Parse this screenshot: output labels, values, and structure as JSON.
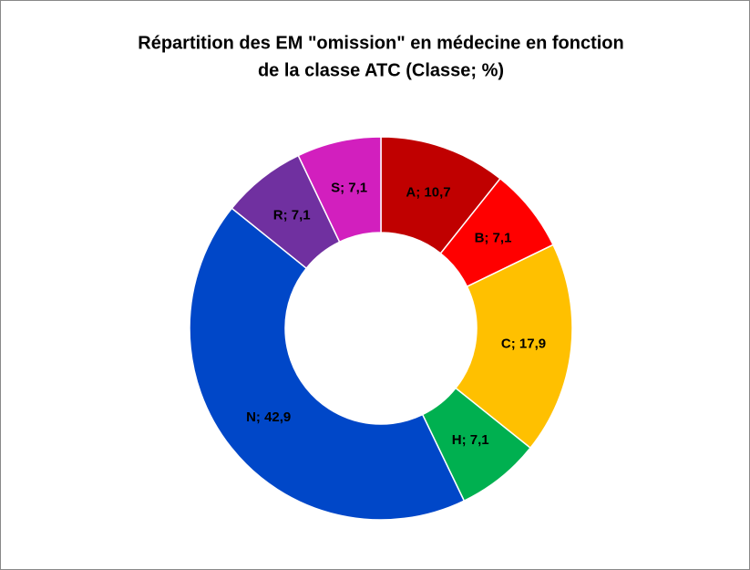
{
  "chart_data": {
    "type": "donut",
    "title": "Répartition des EM \"omission\" en médecine en fonction",
    "subtitle": "de la classe ATC (Classe; %)",
    "values": [
      10.7,
      7.1,
      17.9,
      7.1,
      42.9,
      7.1,
      7.1
    ],
    "value_labels": [
      "A; 10,7",
      "B; 7,1",
      "C; 17,9",
      "H; 7,1",
      "N; 42,9",
      "R; 7,1",
      "S; 7,1"
    ],
    "colors": [
      "#c00000",
      "#ff0000",
      "#ffc000",
      "#00b050",
      "#0047c8",
      "#7030a0",
      "#d21fbe"
    ]
  }
}
